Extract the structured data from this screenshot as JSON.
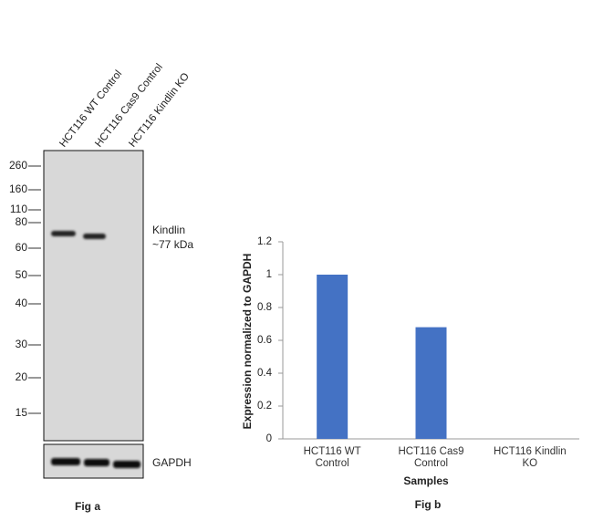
{
  "blot": {
    "lanes": [
      "HCT116 WT Control",
      "HCT116 Cas9 Control",
      "HCT116  Kindlin KO"
    ],
    "markers": [
      260,
      160,
      110,
      80,
      60,
      50,
      40,
      30,
      20,
      15
    ],
    "band_label": "Kindlin",
    "band_size": "~77 kDa",
    "loading_label": "GAPDH",
    "caption": "Fig a"
  },
  "chart_data": {
    "type": "bar",
    "categories": [
      "HCT116 WT Control",
      "HCT116 Cas9 Control",
      "HCT116  Kindlin KO"
    ],
    "values": [
      1,
      0.68,
      0
    ],
    "color": "#4472c4",
    "ylim": [
      0,
      1.2
    ],
    "yticks": [
      0,
      0.2,
      0.4,
      0.6,
      0.8,
      1,
      1.2
    ],
    "y_label": "Expression normalized to GAPDH",
    "x_label": "Samples",
    "caption": "Fig b"
  }
}
